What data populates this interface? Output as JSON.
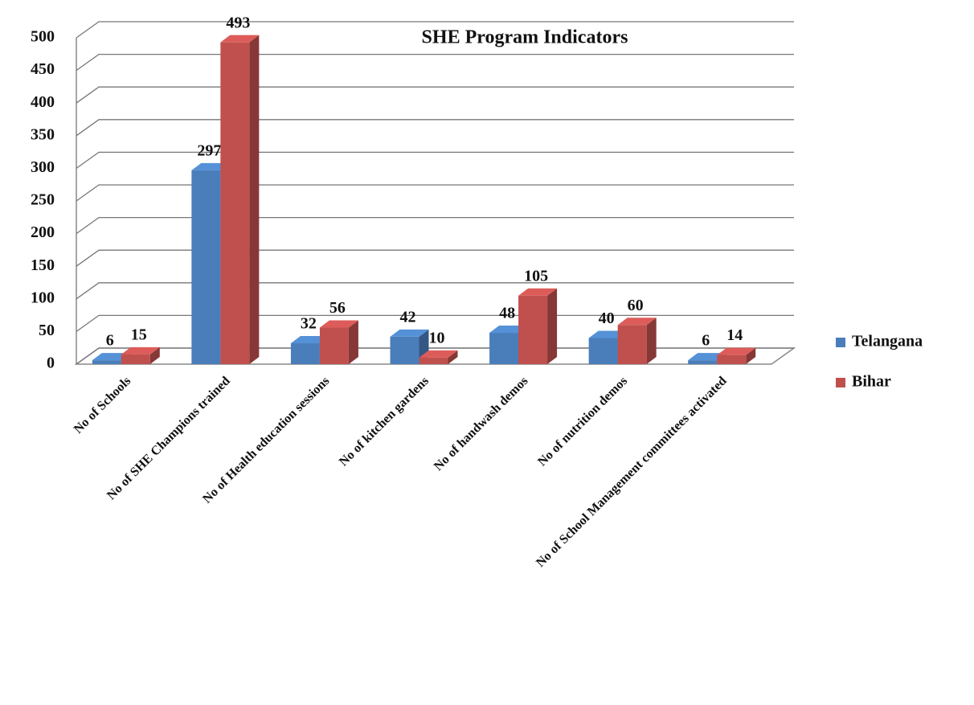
{
  "chart_data": {
    "type": "bar3d",
    "title": "SHE Program Indicators",
    "categories": [
      "No of Schools",
      "No of SHE Champions trained",
      "No of Health education sessions",
      "No of kitchen gardens",
      "No of handwash demos",
      "No of nutrition demos",
      "No of School Management committees activated"
    ],
    "series": [
      {
        "name": "Telangana",
        "color": "#4a7ebb",
        "values": [
          6,
          297,
          32,
          42,
          48,
          40,
          6
        ]
      },
      {
        "name": "Bihar",
        "color": "#c0504d",
        "values": [
          15,
          493,
          56,
          10,
          105,
          60,
          14
        ]
      }
    ],
    "ylim": [
      0,
      500
    ],
    "yticks": [
      0,
      50,
      100,
      150,
      200,
      250,
      300,
      350,
      400,
      450,
      500
    ],
    "grid": true,
    "legend": "right"
  }
}
